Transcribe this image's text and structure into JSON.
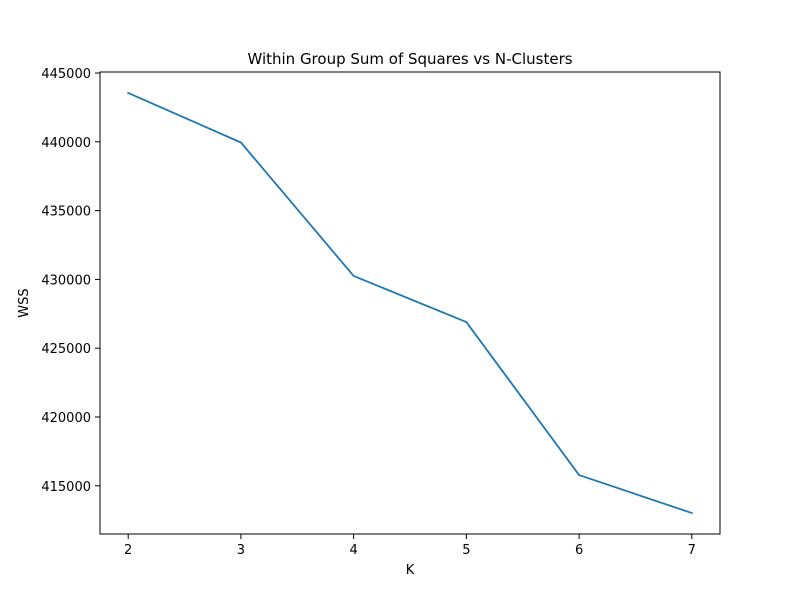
{
  "chart_data": {
    "type": "line",
    "title": "Within Group Sum of Squares vs N-Clusters",
    "xlabel": "K",
    "ylabel": "WSS",
    "x": [
      2,
      3,
      4,
      5,
      6,
      7
    ],
    "series": [
      {
        "values": [
          443550,
          439950,
          430250,
          426900,
          415780,
          413020
        ],
        "color": "#1f77b4"
      }
    ],
    "xlim": [
      1.75,
      7.25
    ],
    "ylim": [
      411496,
      445074
    ],
    "x_ticks": [
      2,
      3,
      4,
      5,
      6,
      7
    ],
    "y_ticks": [
      415000,
      420000,
      425000,
      430000,
      435000,
      440000,
      445000
    ],
    "grid": false,
    "legend": "none"
  }
}
